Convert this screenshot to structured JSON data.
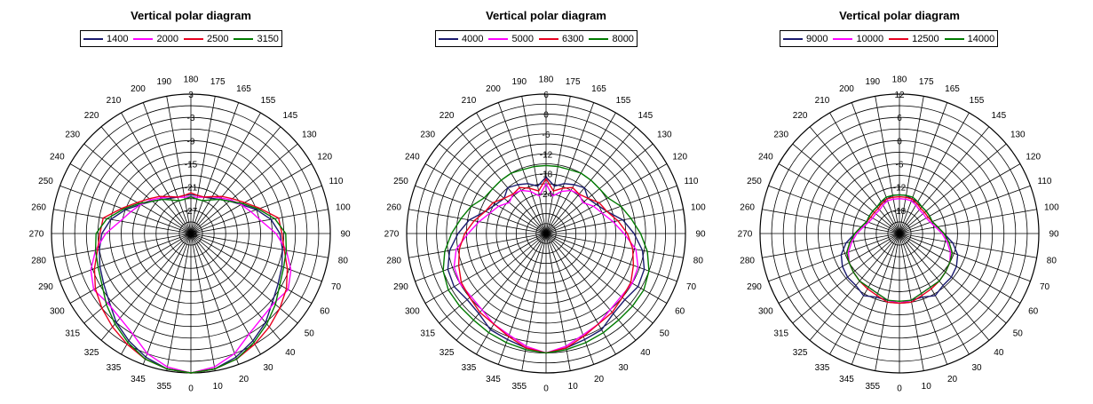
{
  "chart_data": [
    {
      "type": "polar-line",
      "title": "Vertical polar diagram",
      "radial_labels": [
        "3",
        "-3",
        "-9",
        "-15",
        "-21",
        "-27",
        "-33"
      ],
      "angle_labels": [
        "180",
        "175",
        "165",
        "155",
        "145",
        "130",
        "120",
        "110",
        "100",
        "90",
        "80",
        "70",
        "60",
        "50",
        "40",
        "30",
        "20",
        "10",
        "0",
        "355",
        "345",
        "335",
        "325",
        "315",
        "300",
        "290",
        "280",
        "270",
        "260",
        "250",
        "240",
        "230",
        "220",
        "210",
        "200",
        "190"
      ],
      "rlim": [
        -33,
        3
      ],
      "grid": true,
      "legend_position": "top",
      "angles": [
        0,
        10,
        20,
        30,
        40,
        50,
        60,
        70,
        80,
        90,
        100,
        110,
        120,
        130,
        140,
        150,
        160,
        170,
        180,
        190,
        200,
        210,
        220,
        230,
        240,
        250,
        260,
        270,
        280,
        290,
        300,
        310,
        320,
        330,
        340,
        350
      ],
      "series": [
        {
          "name": "1400",
          "color": "#1a1a6e",
          "values": [
            3.0,
            2.5,
            1.0,
            -1.0,
            -3.0,
            -5.5,
            -7.0,
            -8.0,
            -9.0,
            -10.0,
            -12.0,
            -15.0,
            -18.0,
            -20.0,
            -21.5,
            -22.5,
            -23.0,
            -23.0,
            -23.0,
            -23.0,
            -23.0,
            -22.5,
            -21.5,
            -20.0,
            -18.0,
            -15.0,
            -12.0,
            -10.0,
            -9.0,
            -8.0,
            -7.0,
            -5.5,
            -3.0,
            -1.0,
            1.0,
            2.5
          ]
        },
        {
          "name": "2000",
          "color": "#ff00ff",
          "values": [
            3.0,
            2.0,
            0.0,
            -3.0,
            -4.5,
            -5.0,
            -4.0,
            -5.5,
            -8.0,
            -11.0,
            -14.5,
            -16.5,
            -18.0,
            -19.5,
            -21.0,
            -22.0,
            -23.0,
            -23.5,
            -23.5,
            -23.5,
            -23.0,
            -22.0,
            -21.0,
            -19.5,
            -18.0,
            -16.5,
            -14.5,
            -11.0,
            -8.0,
            -5.5,
            -4.0,
            -5.0,
            -4.5,
            -3.0,
            0.0,
            2.0
          ]
        },
        {
          "name": "2500",
          "color": "#e8001f",
          "values": [
            3.0,
            2.5,
            1.5,
            0.0,
            -1.5,
            -3.0,
            -4.5,
            -6.5,
            -8.5,
            -9.5,
            -10.0,
            -14.0,
            -17.0,
            -19.0,
            -20.5,
            -22.0,
            -23.0,
            -23.0,
            -22.5,
            -23.0,
            -23.0,
            -22.0,
            -20.5,
            -19.0,
            -17.0,
            -14.0,
            -10.0,
            -9.5,
            -8.5,
            -6.5,
            -4.5,
            -3.0,
            -1.5,
            0.0,
            1.5,
            2.5
          ]
        },
        {
          "name": "3150",
          "color": "#007a00",
          "values": [
            3.0,
            2.5,
            1.5,
            -0.5,
            -2.5,
            -4.5,
            -6.5,
            -7.5,
            -8.0,
            -8.5,
            -11.0,
            -14.5,
            -17.5,
            -20.0,
            -21.5,
            -23.0,
            -24.0,
            -24.0,
            -23.5,
            -24.0,
            -24.0,
            -23.0,
            -21.5,
            -20.0,
            -17.5,
            -14.5,
            -11.0,
            -8.5,
            -8.0,
            -7.5,
            -6.5,
            -4.5,
            -2.5,
            -0.5,
            1.5,
            2.5
          ]
        }
      ]
    },
    {
      "type": "polar-line",
      "title": "Vertical polar diagram",
      "radial_labels": [
        "6",
        "0",
        "-6",
        "-12",
        "-18",
        "-24"
      ],
      "angle_labels": [
        "180",
        "175",
        "165",
        "155",
        "145",
        "130",
        "120",
        "110",
        "100",
        "90",
        "80",
        "70",
        "60",
        "50",
        "40",
        "30",
        "20",
        "10",
        "0",
        "355",
        "345",
        "335",
        "325",
        "315",
        "300",
        "290",
        "280",
        "270",
        "260",
        "250",
        "240",
        "230",
        "220",
        "210",
        "200",
        "190"
      ],
      "rlim": [
        -36,
        6
      ],
      "grid": true,
      "legend_position": "top",
      "angles": [
        0,
        10,
        20,
        30,
        40,
        50,
        60,
        70,
        80,
        90,
        100,
        110,
        120,
        130,
        140,
        150,
        160,
        170,
        180,
        190,
        200,
        210,
        220,
        230,
        240,
        250,
        260,
        270,
        280,
        290,
        300,
        310,
        320,
        330,
        340,
        350
      ],
      "series": [
        {
          "name": "4000",
          "color": "#1a1a6e",
          "values": [
            0.0,
            -1.0,
            -2.0,
            -2.5,
            -4.5,
            -5.0,
            -4.0,
            -4.5,
            -6.5,
            -9.5,
            -12.5,
            -16.5,
            -18.5,
            -19.5,
            -18.0,
            -19.0,
            -20.0,
            -21.5,
            -19.0,
            -21.5,
            -20.0,
            -19.0,
            -18.0,
            -19.5,
            -18.5,
            -16.5,
            -12.5,
            -9.5,
            -6.5,
            -4.5,
            -4.0,
            -5.0,
            -4.5,
            -2.5,
            -2.0,
            -1.0
          ]
        },
        {
          "name": "5000",
          "color": "#ff00ff",
          "values": [
            0.0,
            -1.5,
            -3.5,
            -4.5,
            -6.0,
            -6.5,
            -6.0,
            -6.5,
            -8.5,
            -12.5,
            -15.5,
            -18.0,
            -19.5,
            -21.5,
            -20.5,
            -21.0,
            -22.5,
            -24.5,
            -21.0,
            -24.5,
            -22.5,
            -21.0,
            -20.5,
            -21.5,
            -19.5,
            -18.0,
            -15.5,
            -12.5,
            -8.5,
            -6.5,
            -6.0,
            -6.5,
            -6.0,
            -4.5,
            -3.5,
            -1.5
          ]
        },
        {
          "name": "6300",
          "color": "#e8001f",
          "values": [
            0.0,
            -1.0,
            -3.0,
            -4.5,
            -5.0,
            -6.0,
            -6.5,
            -8.0,
            -9.5,
            -11.5,
            -14.0,
            -16.5,
            -17.5,
            -19.5,
            -20.5,
            -20.0,
            -21.5,
            -23.0,
            -19.5,
            -23.0,
            -21.5,
            -20.0,
            -20.5,
            -19.5,
            -17.5,
            -16.5,
            -14.0,
            -11.5,
            -9.5,
            -8.0,
            -6.5,
            -6.0,
            -5.0,
            -4.5,
            -3.0,
            -1.0
          ]
        },
        {
          "name": "8000",
          "color": "#007a00",
          "values": [
            0.0,
            -0.5,
            -1.0,
            -1.5,
            -2.0,
            -2.0,
            -2.0,
            -3.0,
            -5.0,
            -7.5,
            -10.0,
            -12.0,
            -14.5,
            -15.0,
            -15.0,
            -15.0,
            -15.5,
            -15.5,
            -15.5,
            -15.5,
            -15.5,
            -15.0,
            -15.0,
            -15.0,
            -14.5,
            -12.0,
            -10.0,
            -7.5,
            -5.0,
            -3.0,
            -2.0,
            -2.0,
            -2.0,
            -1.5,
            -1.0,
            -0.5
          ]
        }
      ]
    },
    {
      "type": "polar-line",
      "title": "Vertical polar diagram",
      "radial_labels": [
        "12",
        "6",
        "0",
        "-6",
        "-12",
        "-18"
      ],
      "angle_labels": [
        "180",
        "175",
        "165",
        "155",
        "145",
        "130",
        "120",
        "110",
        "100",
        "90",
        "80",
        "70",
        "60",
        "50",
        "40",
        "30",
        "20",
        "10",
        "0",
        "355",
        "345",
        "335",
        "325",
        "315",
        "300",
        "290",
        "280",
        "270",
        "260",
        "250",
        "240",
        "230",
        "220",
        "210",
        "200",
        "190"
      ],
      "rlim": [
        -24,
        12
      ],
      "grid": true,
      "legend_position": "top",
      "angles": [
        0,
        10,
        20,
        30,
        40,
        50,
        60,
        70,
        80,
        90,
        100,
        110,
        120,
        130,
        140,
        150,
        160,
        170,
        180,
        190,
        200,
        210,
        220,
        230,
        240,
        250,
        260,
        270,
        280,
        290,
        300,
        310,
        320,
        330,
        340,
        350
      ],
      "series": [
        {
          "name": "9000",
          "color": "#1a1a6e",
          "values": [
            -6.0,
            -6.5,
            -6.5,
            -5.5,
            -6.5,
            -6.5,
            -7.0,
            -8.0,
            -10.0,
            -12.5,
            -14.0,
            -15.0,
            -15.0,
            -15.0,
            -15.0,
            -14.5,
            -14.5,
            -14.0,
            -14.0,
            -14.0,
            -14.5,
            -14.5,
            -15.0,
            -15.0,
            -15.0,
            -15.0,
            -14.0,
            -12.5,
            -10.0,
            -8.0,
            -7.0,
            -6.5,
            -6.5,
            -5.5,
            -6.5,
            -6.5
          ]
        },
        {
          "name": "10000",
          "color": "#ff00ff",
          "values": [
            -6.0,
            -6.5,
            -7.5,
            -8.0,
            -8.0,
            -8.5,
            -9.0,
            -10.0,
            -11.5,
            -13.0,
            -14.5,
            -15.5,
            -16.0,
            -16.0,
            -16.0,
            -15.5,
            -15.0,
            -15.0,
            -15.0,
            -15.0,
            -15.0,
            -15.5,
            -16.0,
            -16.0,
            -16.0,
            -15.5,
            -14.5,
            -13.0,
            -11.5,
            -10.0,
            -9.0,
            -8.5,
            -8.0,
            -8.0,
            -7.5,
            -6.5
          ]
        },
        {
          "name": "12500",
          "color": "#e8001f",
          "values": [
            -6.0,
            -6.0,
            -7.0,
            -7.5,
            -8.0,
            -8.5,
            -9.0,
            -9.5,
            -11.0,
            -12.5,
            -14.0,
            -15.0,
            -15.5,
            -15.5,
            -15.5,
            -15.0,
            -14.5,
            -14.5,
            -14.5,
            -14.5,
            -14.5,
            -15.0,
            -15.5,
            -15.5,
            -15.5,
            -15.0,
            -14.0,
            -12.5,
            -11.0,
            -9.5,
            -9.0,
            -8.5,
            -8.0,
            -7.5,
            -7.0,
            -6.0
          ]
        },
        {
          "name": "14000",
          "color": "#007a00",
          "values": [
            -6.5,
            -6.5,
            -7.5,
            -8.0,
            -8.0,
            -8.5,
            -9.0,
            -9.5,
            -11.0,
            -12.5,
            -14.0,
            -15.0,
            -15.0,
            -15.0,
            -15.0,
            -14.5,
            -14.0,
            -14.0,
            -14.0,
            -14.0,
            -14.0,
            -14.5,
            -15.0,
            -15.0,
            -15.0,
            -15.0,
            -14.0,
            -12.5,
            -11.0,
            -9.5,
            -9.0,
            -8.5,
            -8.0,
            -8.0,
            -7.5,
            -6.5
          ]
        }
      ]
    }
  ]
}
